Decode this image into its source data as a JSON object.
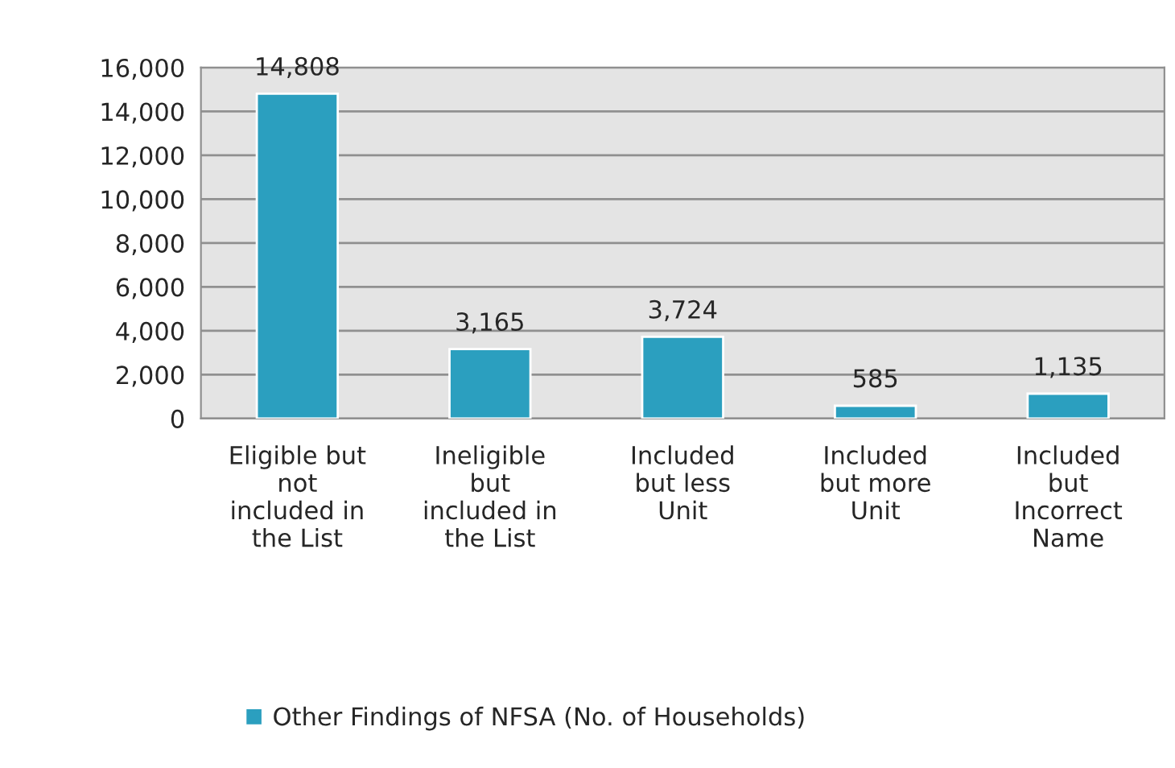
{
  "chart_data": {
    "type": "bar",
    "categories": [
      "Eligible but\nnot\nincluded in\nthe List",
      "Ineligible\nbut\nincluded in\nthe List",
      "Included\nbut less\nUnit",
      "Included\nbut more\nUnit",
      "Included\nbut\nIncorrect\nName"
    ],
    "series": [
      {
        "name": "Other Findings of NFSA (No. of Households)",
        "color": "#2b9fbf",
        "values": [
          14808,
          3165,
          3724,
          585,
          1135
        ],
        "value_labels": [
          "14,808",
          "3,165",
          "3,724",
          "585",
          "1,135"
        ]
      }
    ],
    "ylim": [
      0,
      16000
    ],
    "yticks": [
      {
        "value": 0,
        "label": "0"
      },
      {
        "value": 2000,
        "label": "2,000"
      },
      {
        "value": 4000,
        "label": "4,000"
      },
      {
        "value": 6000,
        "label": "6,000"
      },
      {
        "value": 8000,
        "label": "8,000"
      },
      {
        "value": 10000,
        "label": "10,000"
      },
      {
        "value": 12000,
        "label": "12,000"
      },
      {
        "value": 14000,
        "label": "14,000"
      },
      {
        "value": 16000,
        "label": "16,000"
      }
    ],
    "grid": "y",
    "legend": "bottom"
  }
}
